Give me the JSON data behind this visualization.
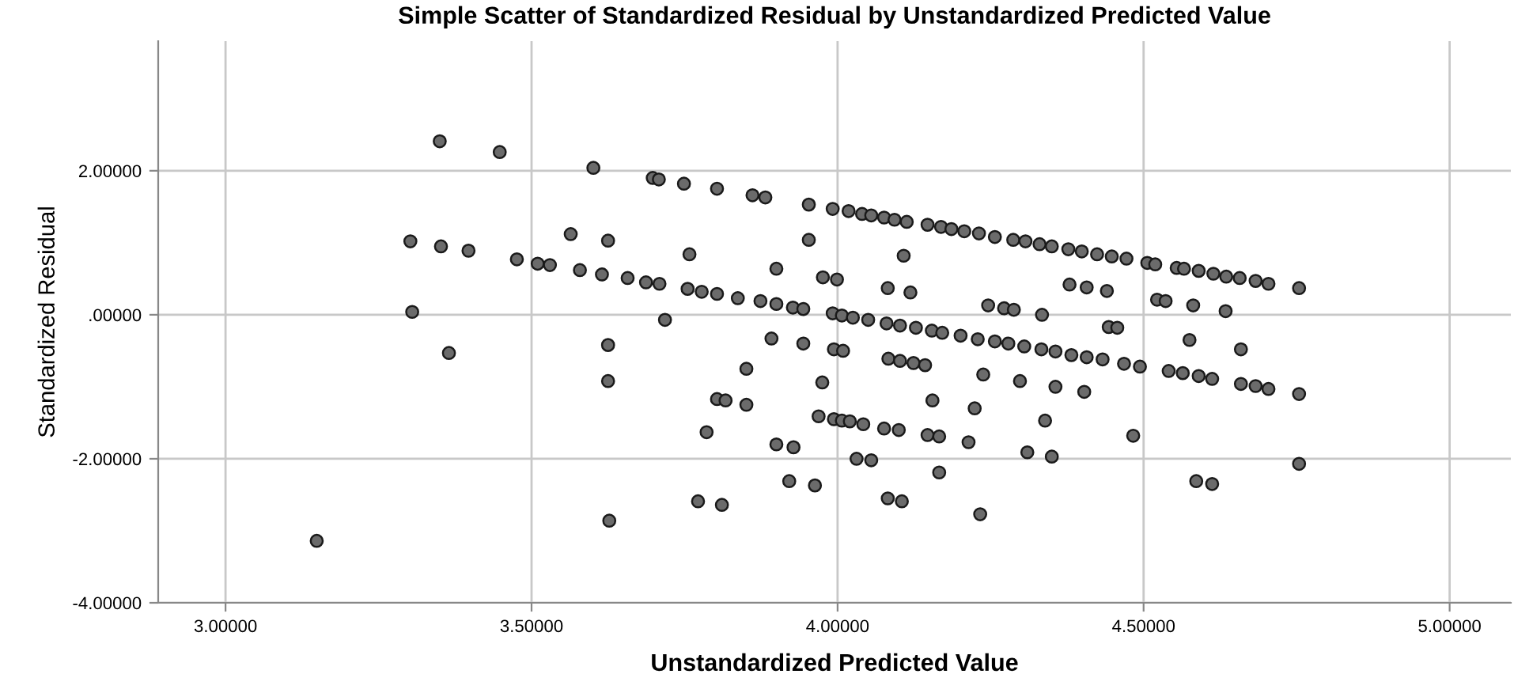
{
  "chart_data": {
    "type": "scatter",
    "title": "Simple Scatter of Standardized Residual by Unstandardized Predicted Value",
    "xlabel": "Unstandardized Predicted Value",
    "ylabel": "Standardized Residual",
    "xlim": [
      2.89,
      5.1
    ],
    "ylim": [
      -4,
      3.8
    ],
    "xticks": [
      {
        "value": 3.0,
        "label": "3.00000"
      },
      {
        "value": 3.5,
        "label": "3.50000"
      },
      {
        "value": 4.0,
        "label": "4.00000"
      },
      {
        "value": 4.5,
        "label": "4.50000"
      },
      {
        "value": 5.0,
        "label": "5.00000"
      }
    ],
    "yticks": [
      {
        "value": -4,
        "label": "-4.00000"
      },
      {
        "value": -2,
        "label": "-2.00000"
      },
      {
        "value": 0,
        "label": ".00000"
      },
      {
        "value": 2,
        "label": "2.00000"
      }
    ],
    "grid": true,
    "marker": "circle",
    "series": [
      {
        "color": "#6b6b6b",
        "x": [
          3.35,
          3.448,
          3.601,
          3.302,
          3.352,
          3.397,
          3.476,
          3.51,
          3.53,
          3.564,
          3.625,
          3.579,
          3.615,
          3.657,
          3.305,
          3.365,
          3.625,
          3.625,
          3.627,
          3.149,
          3.698,
          3.708,
          3.749,
          3.803,
          3.861,
          3.882,
          3.953,
          3.992,
          4.018,
          4.04,
          4.055,
          4.076,
          4.093,
          4.113,
          4.147,
          4.169,
          3.953,
          3.758,
          4.108,
          3.9,
          3.687,
          3.709,
          3.755,
          3.778,
          3.803,
          3.837,
          3.874,
          3.9,
          3.927,
          3.944,
          3.976,
          3.999,
          4.082,
          4.119,
          3.992,
          4.007,
          4.025,
          4.05,
          4.08,
          4.102,
          4.128,
          4.154,
          3.718,
          3.892,
          3.944,
          3.994,
          4.009,
          4.083,
          4.102,
          4.124,
          4.143,
          3.851,
          3.975,
          3.803,
          3.817,
          3.851,
          4.155,
          3.786,
          3.969,
          3.994,
          4.007,
          4.02,
          4.042,
          4.076,
          4.1,
          4.147,
          4.166,
          3.9,
          3.928,
          4.031,
          4.055,
          4.166,
          3.921,
          3.963,
          3.772,
          3.811,
          4.082,
          4.105,
          4.186,
          4.207,
          4.231,
          4.257,
          4.287,
          4.307,
          4.33,
          4.35,
          4.377,
          4.399,
          4.424,
          4.448,
          4.472,
          4.506,
          4.519,
          4.554,
          4.566,
          4.59,
          4.614,
          4.635,
          4.657,
          4.683,
          4.704,
          4.754,
          4.379,
          4.407,
          4.44,
          4.522,
          4.536,
          4.581,
          4.634,
          4.246,
          4.272,
          4.288,
          4.334,
          4.443,
          4.457,
          4.575,
          4.659,
          4.171,
          4.201,
          4.229,
          4.257,
          4.279,
          4.305,
          4.333,
          4.356,
          4.382,
          4.407,
          4.433,
          4.468,
          4.494,
          4.541,
          4.564,
          4.59,
          4.612,
          4.659,
          4.683,
          4.704,
          4.754,
          4.238,
          4.298,
          4.356,
          4.403,
          4.224,
          4.339,
          4.214,
          4.31,
          4.35,
          4.483,
          4.233,
          4.586,
          4.612,
          4.754
        ],
        "values": [
          2.41,
          2.26,
          2.04,
          1.02,
          0.95,
          0.89,
          0.77,
          0.71,
          0.69,
          1.12,
          1.03,
          0.62,
          0.56,
          0.51,
          0.04,
          -0.53,
          -0.42,
          -0.92,
          -2.86,
          -3.14,
          1.9,
          1.88,
          1.82,
          1.75,
          1.66,
          1.63,
          1.53,
          1.47,
          1.44,
          1.4,
          1.38,
          1.35,
          1.32,
          1.29,
          1.25,
          1.22,
          1.04,
          0.84,
          0.82,
          0.64,
          0.45,
          0.43,
          0.36,
          0.32,
          0.29,
          0.23,
          0.19,
          0.15,
          0.1,
          0.08,
          0.52,
          0.49,
          0.37,
          0.31,
          0.02,
          -0.01,
          -0.04,
          -0.07,
          -0.12,
          -0.15,
          -0.18,
          -0.22,
          -0.07,
          -0.33,
          -0.4,
          -0.48,
          -0.5,
          -0.61,
          -0.64,
          -0.67,
          -0.7,
          -0.75,
          -0.94,
          -1.17,
          -1.19,
          -1.25,
          -1.19,
          -1.63,
          -1.41,
          -1.45,
          -1.47,
          -1.48,
          -1.52,
          -1.58,
          -1.6,
          -1.67,
          -1.69,
          -1.8,
          -1.84,
          -2.0,
          -2.02,
          -2.19,
          -2.31,
          -2.37,
          -2.59,
          -2.64,
          -2.55,
          -2.59,
          1.19,
          1.16,
          1.13,
          1.08,
          1.04,
          1.02,
          0.98,
          0.95,
          0.91,
          0.88,
          0.84,
          0.81,
          0.78,
          0.72,
          0.7,
          0.65,
          0.64,
          0.61,
          0.57,
          0.53,
          0.51,
          0.47,
          0.43,
          0.37,
          0.42,
          0.38,
          0.33,
          0.21,
          0.19,
          0.13,
          0.05,
          0.13,
          0.09,
          0.07,
          0.0,
          -0.17,
          -0.18,
          -0.35,
          -0.48,
          -0.25,
          -0.29,
          -0.34,
          -0.37,
          -0.4,
          -0.44,
          -0.48,
          -0.51,
          -0.56,
          -0.59,
          -0.62,
          -0.68,
          -0.72,
          -0.78,
          -0.81,
          -0.85,
          -0.89,
          -0.96,
          -0.99,
          -1.03,
          -1.1,
          -0.83,
          -0.92,
          -1.0,
          -1.07,
          -1.3,
          -1.47,
          -1.77,
          -1.91,
          -1.97,
          -1.68,
          -2.77,
          -2.31,
          -2.35,
          -2.07
        ]
      }
    ]
  }
}
